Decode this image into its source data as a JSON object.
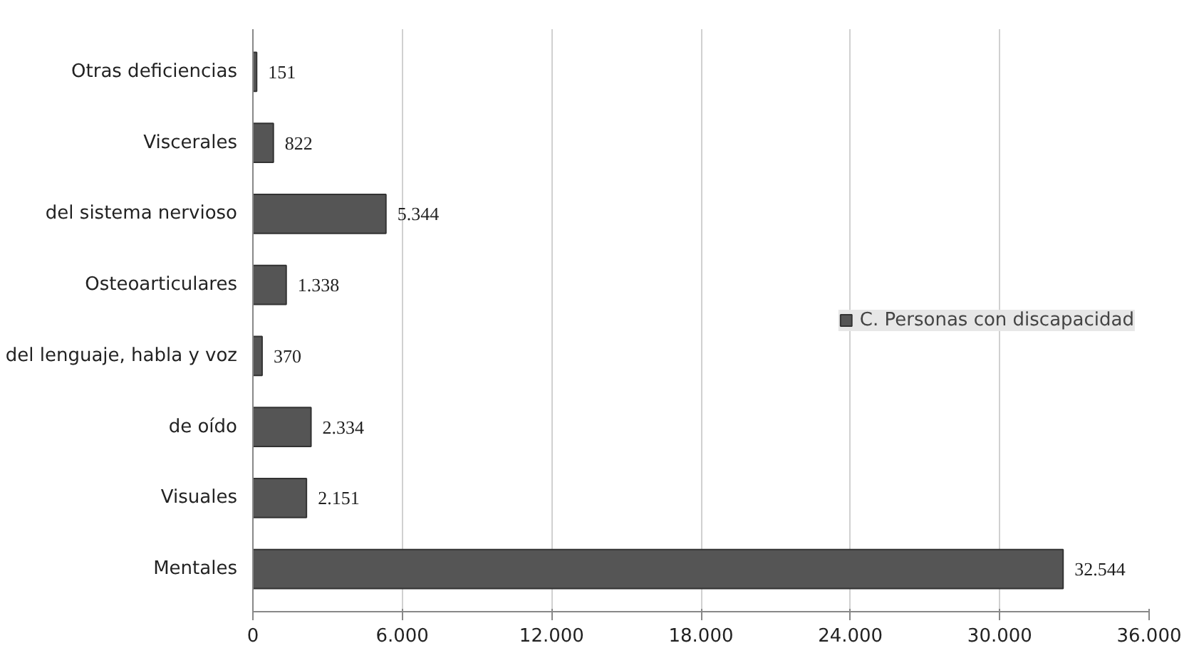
{
  "chart_data": {
    "type": "bar",
    "orientation": "horizontal",
    "categories": [
      "Otras deficiencias",
      "Viscerales",
      "del sistema nervioso",
      "Osteoarticulares",
      "del lenguaje, habla y voz",
      "de oído",
      "Visuales",
      "Mentales"
    ],
    "series": [
      {
        "name": "C. Personas con discapacidad",
        "color": "#555555",
        "values": [
          151,
          822,
          5344,
          1338,
          370,
          2334,
          2151,
          32544
        ],
        "value_labels": [
          "151",
          "822",
          "5.344",
          "1.338",
          "370",
          "2.334",
          "2.151",
          "32.544"
        ]
      }
    ],
    "xlim": [
      0,
      36000
    ],
    "xticks": [
      0,
      {
        "value": 6000,
        "label": "6.000"
      },
      {
        "value": 12000,
        "label": "12.000"
      },
      {
        "value": 18000,
        "label": "18.000"
      },
      {
        "value": 24000,
        "label": "24.000"
      },
      {
        "value": 30000,
        "label": "30.000"
      },
      {
        "value": 36000,
        "label": "36.000"
      }
    ],
    "grid": "x",
    "legend": "right"
  }
}
